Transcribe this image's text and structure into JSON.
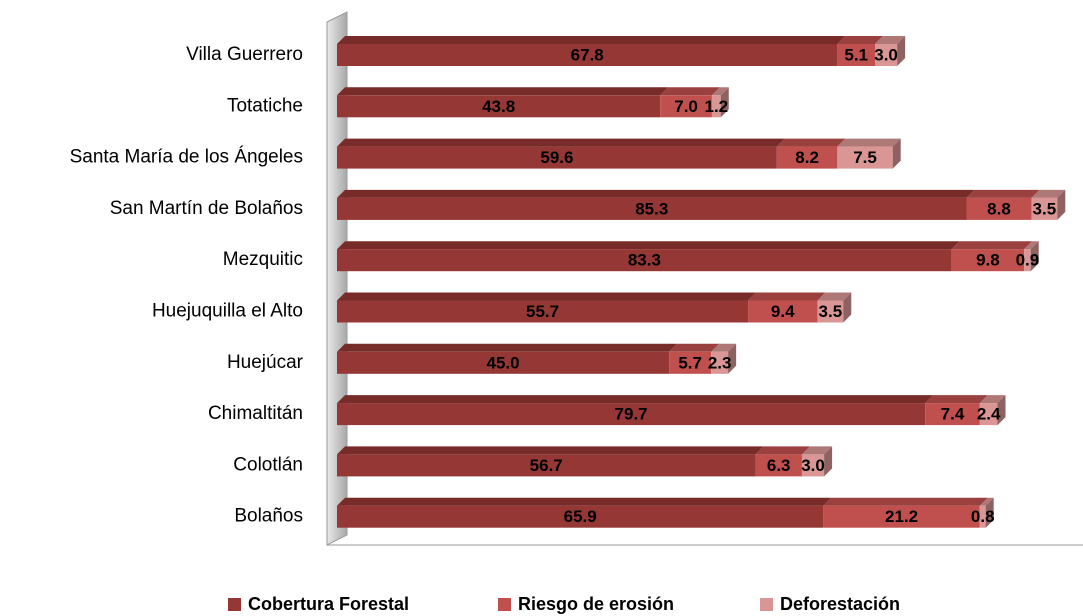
{
  "chart_data": {
    "type": "stacked-bar-3d",
    "categories": [
      "Villa Guerrero",
      "Totatiche",
      "Santa María de los Ángeles",
      "San Martín de Bolaños",
      "Mezquitic",
      "Huejuquilla el Alto",
      "Huejúcar",
      "Chimaltitán",
      "Colotlán",
      "Bolaños"
    ],
    "xlim": [
      0,
      100
    ],
    "legend": "bottom",
    "series": [
      {
        "name": "Cobertura Forestal",
        "color": "#953735",
        "values": [
          67.8,
          43.8,
          59.6,
          85.3,
          83.3,
          55.7,
          45,
          79.7,
          56.7,
          65.9
        ],
        "value_labels": [
          "67.8",
          "43.8",
          "59.6",
          "85.3",
          "83.3",
          "55.7",
          "45.0",
          "79.7",
          "56.7",
          "65.9"
        ]
      },
      {
        "name": "Riesgo de erosión",
        "color": "#c0504d",
        "values": [
          5.1,
          7,
          8.2,
          8.8,
          9.8,
          9.4,
          5.7,
          7.4,
          6.3,
          21.2
        ],
        "value_labels": [
          "5.1",
          "7.0",
          "8.2",
          "8.8",
          "9.8",
          "9.4",
          "5.7",
          "7.4",
          "6.3",
          "21.2"
        ]
      },
      {
        "name": "Deforestación",
        "color": "#d99694",
        "values": [
          3,
          1.2,
          7.5,
          3.5,
          0.9,
          3.5,
          2.3,
          2.4,
          3,
          0.8
        ],
        "value_labels": [
          "3.0",
          "1.2",
          "7.5",
          "3.5",
          "0.9",
          "3.5",
          "2.3",
          "2.4",
          "3.0",
          "0.8"
        ]
      }
    ]
  }
}
